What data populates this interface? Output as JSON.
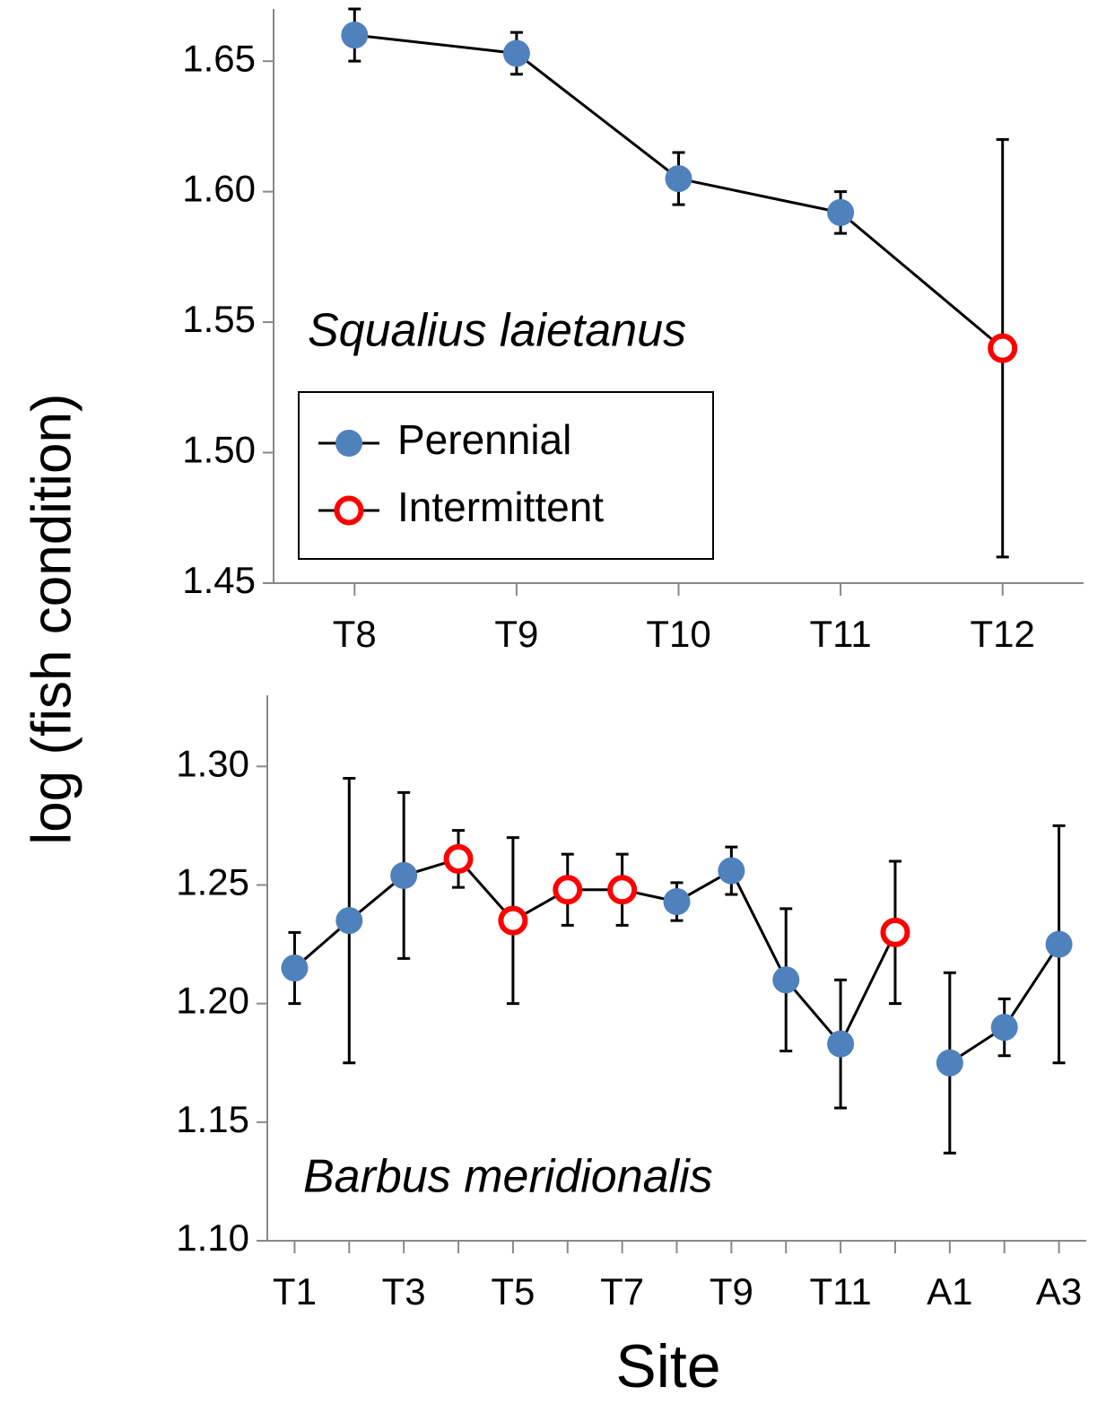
{
  "ylabel": "log (fish condition)",
  "xlabel": "Site",
  "legend": [
    {
      "name": "Perennial",
      "color": "#4f81bd",
      "marker": "filled"
    },
    {
      "name": "Intermittent",
      "color": "#ff0000",
      "marker": "open"
    }
  ],
  "chart_data": [
    {
      "type": "line",
      "annotation": "Squalius laietanus",
      "categories": [
        "T8",
        "T9",
        "T10",
        "T11",
        "T12"
      ],
      "values": [
        1.66,
        1.653,
        1.605,
        1.592,
        1.54
      ],
      "errors": [
        0.01,
        0.008,
        0.01,
        0.008,
        0.08
      ],
      "site_type": [
        0,
        0,
        0,
        0,
        1
      ],
      "line_groups": [
        0,
        0,
        0,
        0,
        0
      ],
      "ylim": [
        1.45,
        1.67
      ],
      "yticks": [
        1.45,
        {
          "value": 1.5,
          "label": "1.50"
        },
        1.55,
        {
          "value": 1.6,
          "label": "1.60"
        },
        1.65
      ],
      "show_legend": true
    },
    {
      "type": "line",
      "annotation": "Barbus meridionalis",
      "categories": [
        "T1",
        null,
        "T3",
        null,
        "T5",
        null,
        "T7",
        null,
        "T9",
        null,
        "T11",
        null,
        "A1",
        null,
        "A3"
      ],
      "values": [
        1.215,
        1.235,
        1.254,
        1.261,
        1.235,
        1.248,
        1.248,
        1.243,
        1.256,
        1.21,
        1.183,
        1.23,
        1.175,
        1.19,
        1.225
      ],
      "errors": [
        0.015,
        0.06,
        0.035,
        0.012,
        0.035,
        0.015,
        0.015,
        0.008,
        0.01,
        0.03,
        0.027,
        0.03,
        0.038,
        0.012,
        0.05
      ],
      "site_type": [
        0,
        0,
        0,
        1,
        1,
        1,
        1,
        0,
        0,
        0,
        0,
        1,
        0,
        0,
        0
      ],
      "line_groups": [
        0,
        0,
        0,
        0,
        0,
        0,
        0,
        0,
        0,
        0,
        0,
        0,
        1,
        1,
        1
      ],
      "ylim": [
        1.1,
        1.33
      ],
      "yticks": [
        {
          "value": 1.1,
          "label": "1.10"
        },
        1.15,
        {
          "value": 1.2,
          "label": "1.20"
        },
        1.25,
        {
          "value": 1.3,
          "label": "1.30"
        }
      ],
      "show_legend": false
    }
  ]
}
